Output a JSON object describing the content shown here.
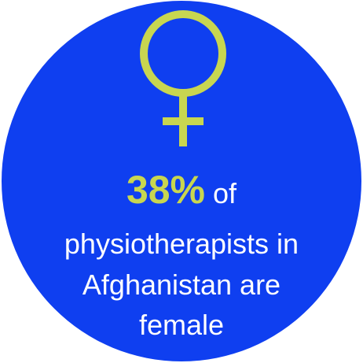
{
  "colors": {
    "circle": "#0F3FF0",
    "accent": "#C8D650",
    "text": "#FFFFFF"
  },
  "icon": "female-symbol-icon",
  "stat": {
    "value": "38%",
    "suffix": "of",
    "line2": "physiotherapists in",
    "line3": "Afghanistan are",
    "line4": "female"
  }
}
